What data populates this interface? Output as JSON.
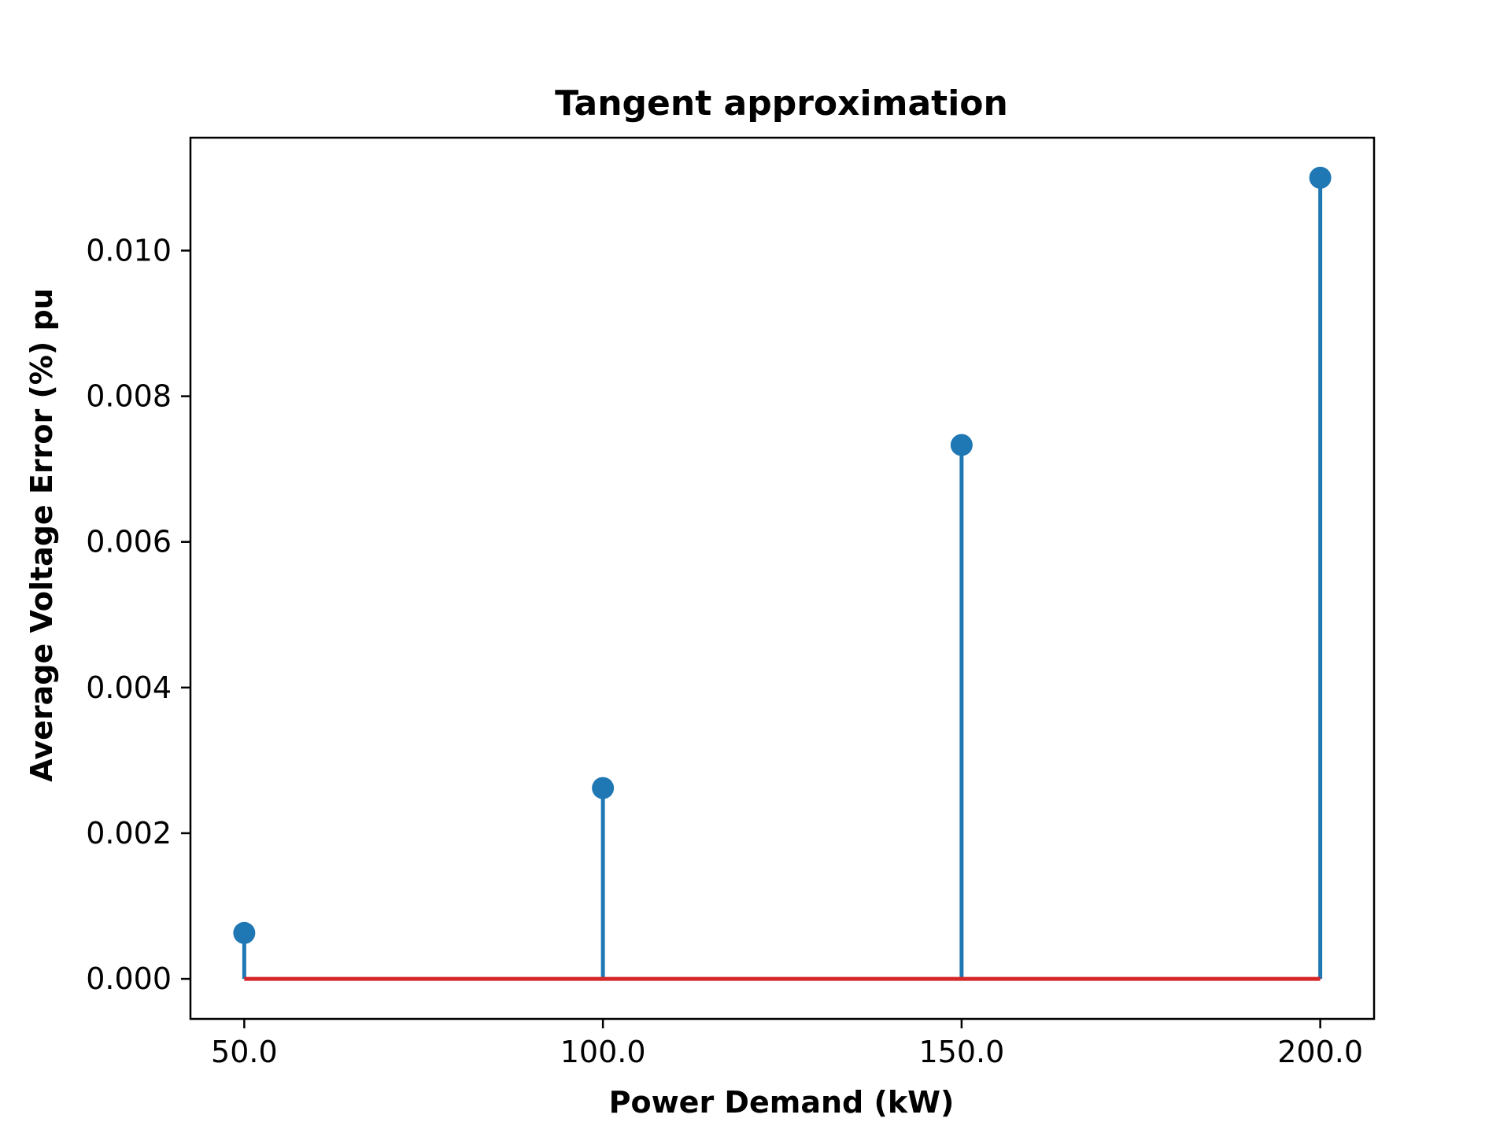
{
  "chart_data": {
    "type": "stem",
    "title": "Tangent approximation",
    "xlabel": "Power Demand (kW)",
    "ylabel": "Average Voltage Error (%) pu",
    "x": [
      50.0,
      100.0,
      150.0,
      200.0
    ],
    "y": [
      0.00063,
      0.00262,
      0.00733,
      0.011
    ],
    "xlim": [
      42.5,
      207.5
    ],
    "ylim": [
      -0.00055,
      0.01155
    ],
    "xticks": [
      "50.0",
      "100.0",
      "150.0",
      "200.0"
    ],
    "xtick_values": [
      50,
      100,
      150,
      200
    ],
    "yticks": [
      "0.000",
      "0.002",
      "0.004",
      "0.006",
      "0.008",
      "0.010"
    ],
    "ytick_values": [
      0.0,
      0.002,
      0.004,
      0.006,
      0.008,
      0.01
    ],
    "baseline": 0.0,
    "grid": false,
    "colors": {
      "stem": "#1f77b4",
      "marker": "#1f77b4",
      "baseline": "#d62728"
    }
  }
}
